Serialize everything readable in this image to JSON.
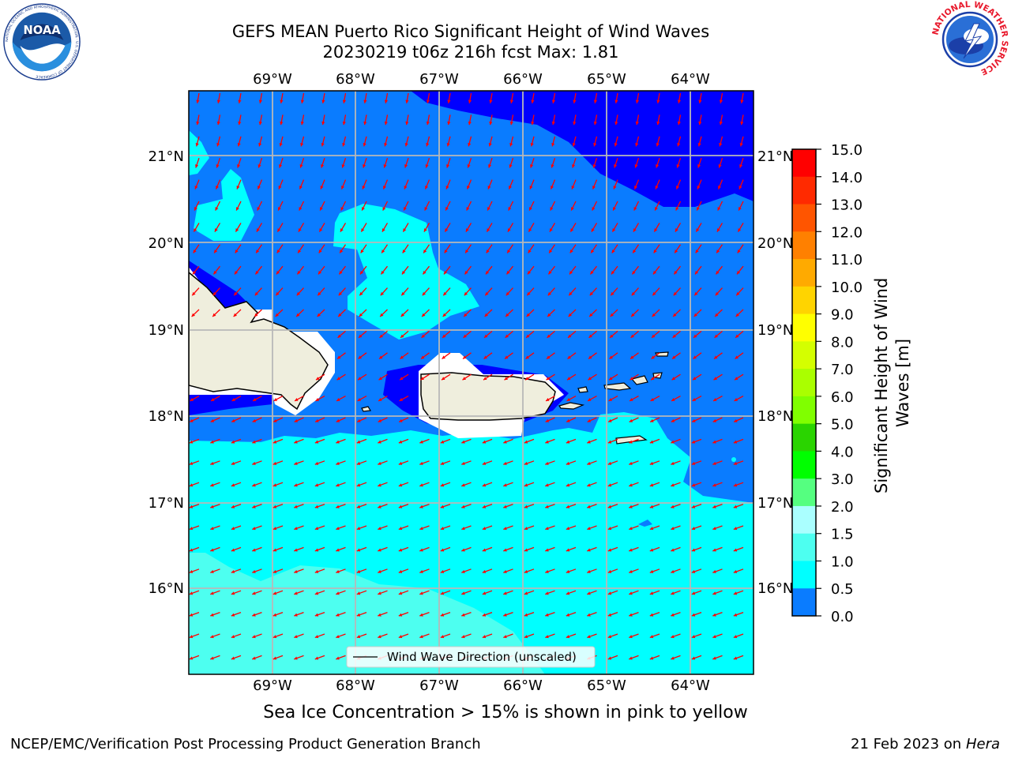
{
  "header": {
    "title_line1": "GEFS MEAN Puerto Rico Significant Height of Wind Waves",
    "title_line2": "20230219 t06z 216h fcst   Max: 1.81"
  },
  "logos": {
    "noaa_text": "NOAA",
    "noaa_ring_text": "NATIONAL OCEANIC AND ATMOSPHERIC ADMINISTRATION · U.S. DEPARTMENT OF COMMERCE",
    "nws_ring_text": "NATIONAL WEATHER SERVICE"
  },
  "map": {
    "lon_labels": [
      "69°W",
      "68°W",
      "67°W",
      "66°W",
      "65°W",
      "64°W"
    ],
    "lat_labels": [
      "21°N",
      "20°N",
      "19°N",
      "18°N",
      "17°N",
      "16°N"
    ],
    "legend_label": "Wind Wave Direction (unscaled)",
    "colors": {
      "land": "#efeedd",
      "band_0_0.5": "#0000ff",
      "band_0.5_1.0": "#0a7cff",
      "band_1.0_1.5": "#00ffff",
      "band_1.5_2.0": "#4dfff0",
      "arrows": "#ff0000",
      "grid": "#b8b8b8"
    }
  },
  "colorbar": {
    "label": "Significant Height of Wind Waves [m]",
    "label_line1": "Significant Height of Wind",
    "label_line2": "Waves [m]",
    "ticks": [
      "15.0",
      "14.0",
      "13.0",
      "12.0",
      "11.0",
      "10.0",
      "9.0",
      "8.0",
      "7.0",
      "6.0",
      "5.0",
      "4.0",
      "3.0",
      "2.0",
      "1.5",
      "1.0",
      "0.5",
      "0.0"
    ],
    "colors": [
      "#ff0000",
      "#ff2a00",
      "#ff5500",
      "#ff8000",
      "#ffaa00",
      "#ffd400",
      "#ffff00",
      "#d4ff00",
      "#aaff00",
      "#80ff00",
      "#2ad400",
      "#00ff00",
      "#55ff80",
      "#aaffff",
      "#4dfff0",
      "#00ffff",
      "#0a7cff",
      "#0000ff"
    ]
  },
  "notes": {
    "sea_ice": "Sea Ice Concentration > 15% is shown in pink to yellow",
    "footer_left": "NCEP/EMC/Verification Post Processing Product Generation Branch",
    "footer_date": "21 Feb 2023 on",
    "footer_host": "Hera"
  }
}
